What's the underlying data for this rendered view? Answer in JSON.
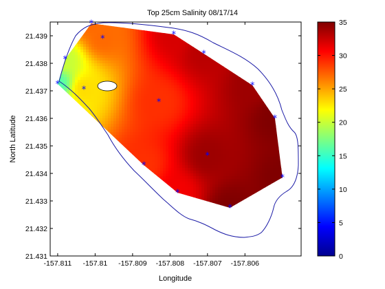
{
  "chart_data": {
    "type": "heatmap",
    "title": "Top 25cm        Salinity        08/17/14",
    "xlabel": "Longitude",
    "ylabel": "North Latitude",
    "xlim": [
      -157.8112,
      -157.8045
    ],
    "ylim": [
      21.431,
      21.4395
    ],
    "x_ticks": [
      -157.811,
      -157.81,
      -157.809,
      -157.808,
      -157.807,
      -157.806
    ],
    "x_tick_labels": [
      "-157.811",
      "-157.81",
      "-157.809",
      "-157.808",
      "-157.807",
      "-157.806"
    ],
    "y_ticks": [
      21.431,
      21.432,
      21.433,
      21.434,
      21.435,
      21.436,
      21.437,
      21.438,
      21.439
    ],
    "y_tick_labels": [
      "21.431",
      "21.432",
      "21.433",
      "21.434",
      "21.435",
      "21.436",
      "21.437",
      "21.438",
      "21.439"
    ],
    "colorbar": {
      "range": [
        0,
        35
      ],
      "ticks": [
        0,
        5,
        10,
        15,
        20,
        25,
        30,
        35
      ],
      "tick_labels": [
        "0",
        "5",
        "10",
        "15",
        "20",
        "25",
        "30",
        "35"
      ],
      "colormap": "jet"
    },
    "sample_points": [
      {
        "x": -157.811,
        "y": 21.43725,
        "value": 16
      },
      {
        "x": -157.8108,
        "y": 21.43815,
        "value": 20
      },
      {
        "x": -157.8101,
        "y": 21.43945,
        "value": 27
      },
      {
        "x": -157.8098,
        "y": 21.4389,
        "value": 27
      },
      {
        "x": -157.8103,
        "y": 21.43705,
        "value": 23
      },
      {
        "x": -157.8083,
        "y": 21.4366,
        "value": 29
      },
      {
        "x": -157.8079,
        "y": 21.43905,
        "value": 32
      },
      {
        "x": -157.8071,
        "y": 21.43835,
        "value": 33
      },
      {
        "x": -157.8058,
        "y": 21.4372,
        "value": 34
      },
      {
        "x": -157.8052,
        "y": 21.436,
        "value": 35
      },
      {
        "x": -157.805,
        "y": 21.43385,
        "value": 35
      },
      {
        "x": -157.8064,
        "y": 21.43275,
        "value": 35
      },
      {
        "x": -157.8078,
        "y": 21.4333,
        "value": 31
      },
      {
        "x": -157.807,
        "y": 21.43465,
        "value": 34
      },
      {
        "x": -157.8087,
        "y": 21.4343,
        "value": 29
      }
    ],
    "grid": false,
    "legend": "colorbar-right"
  }
}
